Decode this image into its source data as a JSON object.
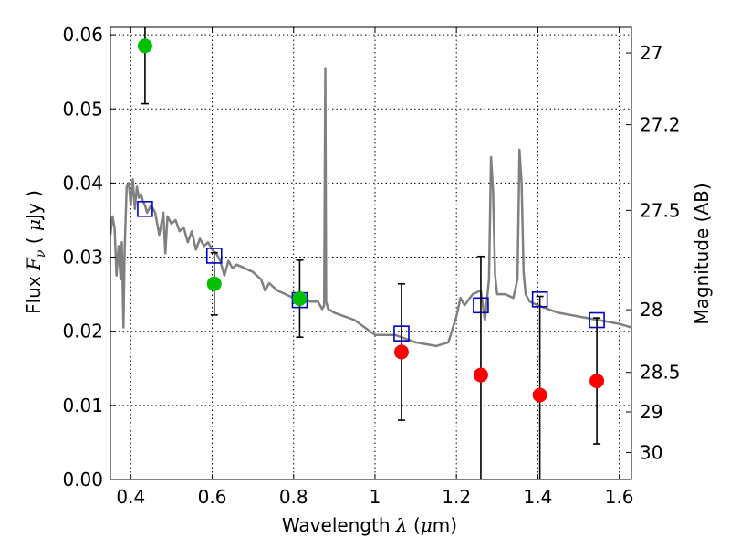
{
  "chart_data": {
    "type": "scatter",
    "title": "",
    "xlabel": {
      "prefix": "Wavelength ",
      "symbol": "λ",
      "unit_open": " (",
      "unit_mu": "μ",
      "unit_rest": "m)"
    },
    "ylabel": {
      "prefix": "Flux ",
      "symbol": "F",
      "subscript": "ν",
      "unit_open": " ( ",
      "unit_mu": "μ",
      "unit_rest": "Jy )"
    },
    "y2label": "Magnitude (AB)",
    "xlim": [
      0.35,
      1.63
    ],
    "ylim": [
      0.0,
      0.061
    ],
    "grid": true,
    "xticks": [
      {
        "v": 0.4,
        "label": "0.4"
      },
      {
        "v": 0.6,
        "label": "0.6"
      },
      {
        "v": 0.8,
        "label": "0.8"
      },
      {
        "v": 1.0,
        "label": "1"
      },
      {
        "v": 1.2,
        "label": "1.2"
      },
      {
        "v": 1.4,
        "label": "1.4"
      },
      {
        "v": 1.6,
        "label": "1.6"
      }
    ],
    "yticks": [
      {
        "v": 0.0,
        "label": "0.00"
      },
      {
        "v": 0.01,
        "label": "0.01"
      },
      {
        "v": 0.02,
        "label": "0.02"
      },
      {
        "v": 0.03,
        "label": "0.03"
      },
      {
        "v": 0.04,
        "label": "0.04"
      },
      {
        "v": 0.05,
        "label": "0.05"
      },
      {
        "v": 0.06,
        "label": "0.06"
      }
    ],
    "y2ticks": [
      {
        "v": 27,
        "label": "27"
      },
      {
        "v": 27.2,
        "label": "27.2"
      },
      {
        "v": 27.5,
        "label": "27.5"
      },
      {
        "v": 28,
        "label": "28"
      },
      {
        "v": 28.5,
        "label": "28.5"
      },
      {
        "v": 29,
        "label": "29"
      },
      {
        "v": 30,
        "label": "30"
      }
    ],
    "series": [
      {
        "kind": "line",
        "color": "#808080",
        "x": [
          0.35,
          0.355,
          0.36,
          0.365,
          0.37,
          0.375,
          0.378,
          0.382,
          0.385,
          0.39,
          0.395,
          0.4,
          0.405,
          0.41,
          0.415,
          0.42,
          0.425,
          0.43,
          0.435,
          0.44,
          0.445,
          0.45,
          0.46,
          0.47,
          0.48,
          0.485,
          0.49,
          0.5,
          0.51,
          0.52,
          0.53,
          0.54,
          0.55,
          0.56,
          0.57,
          0.58,
          0.59,
          0.6,
          0.61,
          0.62,
          0.63,
          0.64,
          0.65,
          0.66,
          0.68,
          0.7,
          0.72,
          0.73,
          0.74,
          0.76,
          0.78,
          0.8,
          0.82,
          0.84,
          0.86,
          0.87,
          0.875,
          0.878,
          0.88,
          0.885,
          0.9,
          0.95,
          1.0,
          1.05,
          1.1,
          1.15,
          1.18,
          1.2,
          1.21,
          1.22,
          1.24,
          1.26,
          1.27,
          1.28,
          1.285,
          1.29,
          1.295,
          1.3,
          1.32,
          1.34,
          1.35,
          1.355,
          1.36,
          1.365,
          1.37,
          1.38,
          1.4,
          1.45,
          1.5,
          1.55,
          1.6,
          1.63
        ],
        "y": [
          0.033,
          0.0355,
          0.034,
          0.0275,
          0.0315,
          0.027,
          0.032,
          0.0205,
          0.031,
          0.0395,
          0.04,
          0.037,
          0.0405,
          0.0365,
          0.0395,
          0.038,
          0.0385,
          0.0375,
          0.037,
          0.036,
          0.0365,
          0.037,
          0.036,
          0.033,
          0.036,
          0.0305,
          0.0355,
          0.0345,
          0.035,
          0.0335,
          0.034,
          0.032,
          0.0335,
          0.031,
          0.0325,
          0.0315,
          0.032,
          0.031,
          0.0305,
          0.0295,
          0.0275,
          0.0295,
          0.0285,
          0.029,
          0.0285,
          0.028,
          0.027,
          0.0255,
          0.0265,
          0.0255,
          0.025,
          0.0245,
          0.025,
          0.024,
          0.024,
          0.023,
          0.0235,
          0.0555,
          0.024,
          0.023,
          0.0225,
          0.0215,
          0.0195,
          0.0195,
          0.0185,
          0.018,
          0.0185,
          0.022,
          0.0245,
          0.0235,
          0.025,
          0.0255,
          0.0215,
          0.027,
          0.0435,
          0.039,
          0.0275,
          0.025,
          0.025,
          0.0245,
          0.027,
          0.0445,
          0.04,
          0.028,
          0.025,
          0.024,
          0.0235,
          0.0225,
          0.022,
          0.0215,
          0.021,
          0.0205
        ]
      },
      {
        "kind": "squares",
        "color": "#0000cc",
        "x": [
          0.435,
          0.605,
          0.815,
          1.065,
          1.26,
          1.405,
          1.545
        ],
        "y": [
          0.0365,
          0.0302,
          0.0242,
          0.0197,
          0.0235,
          0.0243,
          0.0215
        ]
      },
      {
        "kind": "points",
        "color": "#00c000",
        "x": [
          0.435,
          0.605,
          0.815
        ],
        "y": [
          0.0585,
          0.0264,
          0.0244
        ],
        "err": [
          0.0078,
          0.0042,
          0.0052
        ]
      },
      {
        "kind": "points",
        "color": "#ff0000",
        "x": [
          1.065,
          1.26,
          1.405,
          1.545
        ],
        "y": [
          0.0172,
          0.0141,
          0.0114,
          0.0133
        ],
        "err": [
          0.0092,
          0.016,
          0.0133,
          0.0085
        ]
      }
    ],
    "colors": {
      "axis": "#000000",
      "grid": "#000000",
      "errorbar": "#000000"
    }
  }
}
